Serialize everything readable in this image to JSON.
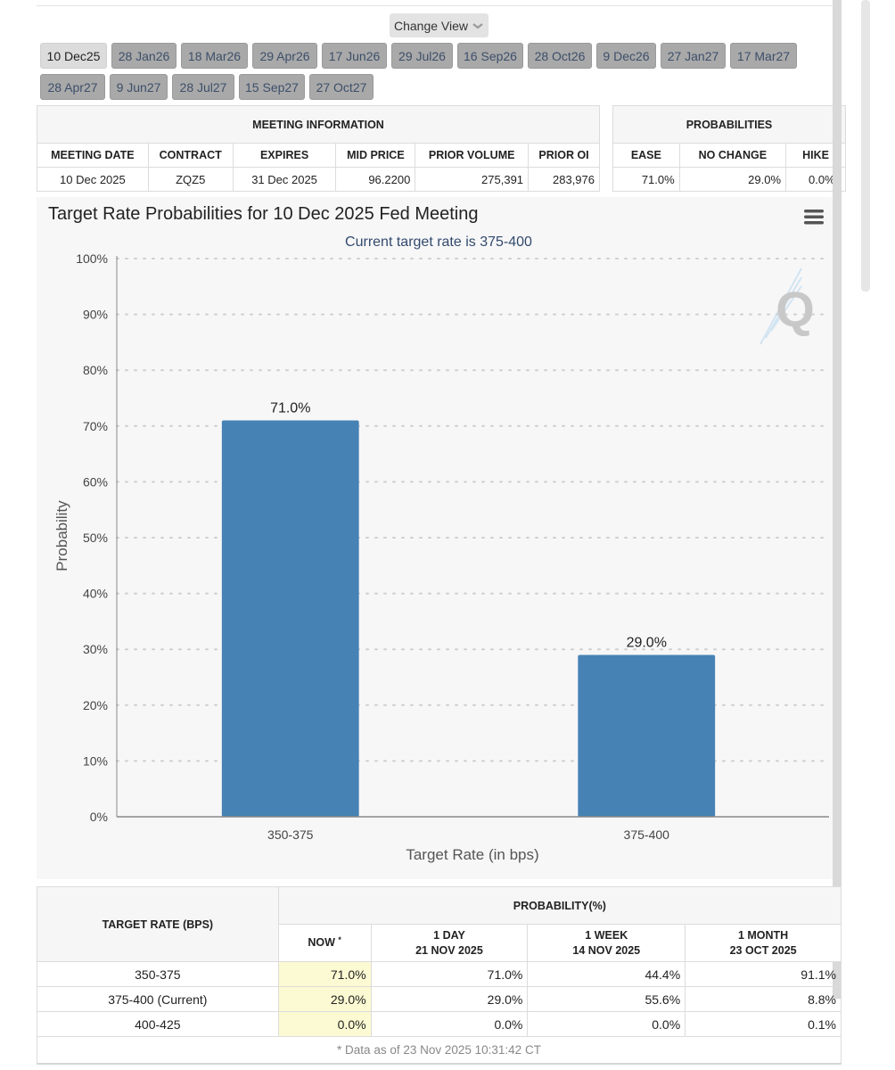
{
  "change_view": {
    "label": "Change View"
  },
  "tabs": [
    {
      "label": "10 Dec25",
      "active": true
    },
    {
      "label": "28 Jan26"
    },
    {
      "label": "18 Mar26"
    },
    {
      "label": "29 Apr26"
    },
    {
      "label": "17 Jun26"
    },
    {
      "label": "29 Jul26"
    },
    {
      "label": "16 Sep26"
    },
    {
      "label": "28 Oct26"
    },
    {
      "label": "9 Dec26"
    },
    {
      "label": "27 Jan27"
    },
    {
      "label": "17 Mar27"
    },
    {
      "label": "28 Apr27"
    },
    {
      "label": "9 Jun27"
    },
    {
      "label": "28 Jul27"
    },
    {
      "label": "15 Sep27"
    },
    {
      "label": "27 Oct27"
    }
  ],
  "meeting_info": {
    "title": "MEETING INFORMATION",
    "headers": [
      "MEETING DATE",
      "CONTRACT",
      "EXPIRES",
      "MID PRICE",
      "PRIOR VOLUME",
      "PRIOR OI"
    ],
    "values": [
      "10 Dec 2025",
      "ZQZ5",
      "31 Dec 2025",
      "96.2200",
      "275,391",
      "283,976"
    ]
  },
  "probabilities": {
    "title": "PROBABILITIES",
    "headers": [
      "EASE",
      "NO CHANGE",
      "HIKE"
    ],
    "values": [
      "71.0%",
      "29.0%",
      "0.0%"
    ]
  },
  "chart_data": {
    "type": "bar",
    "title": "Target Rate Probabilities for 10 Dec 2025 Fed Meeting",
    "subtitle": "Current target rate is 375-400",
    "xlabel": "Target Rate (in bps)",
    "ylabel": "Probability",
    "categories": [
      "350-375",
      "375-400"
    ],
    "values": [
      71.0,
      29.0
    ],
    "data_labels": [
      "71.0%",
      "29.0%"
    ],
    "ylim": [
      0,
      100
    ],
    "yticks": [
      "0%",
      "10%",
      "20%",
      "30%",
      "40%",
      "50%",
      "60%",
      "70%",
      "80%",
      "90%",
      "100%"
    ],
    "grid": true,
    "bar_color": "#4682b4",
    "watermark": "Q"
  },
  "bottom_table": {
    "target_rate_header": "TARGET RATE (BPS)",
    "probability_header": "PROBABILITY(%)",
    "now_header": "NOW",
    "now_marker": "*",
    "col_1day_line1": "1 DAY",
    "col_1day_line2": "21 NOV 2025",
    "col_1week_line1": "1 WEEK",
    "col_1week_line2": "14 NOV 2025",
    "col_1month_line1": "1 MONTH",
    "col_1month_line2": "23 OCT 2025",
    "rows": [
      {
        "rate": "350-375",
        "now": "71.0%",
        "day": "71.0%",
        "week": "44.4%",
        "month": "91.1%"
      },
      {
        "rate": "375-400 (Current)",
        "now": "29.0%",
        "day": "29.0%",
        "week": "55.6%",
        "month": "8.8%"
      },
      {
        "rate": "400-425",
        "now": "0.0%",
        "day": "0.0%",
        "week": "0.0%",
        "month": "0.1%"
      }
    ],
    "footnote": "* Data as of 23 Nov 2025 10:31:42 CT"
  }
}
